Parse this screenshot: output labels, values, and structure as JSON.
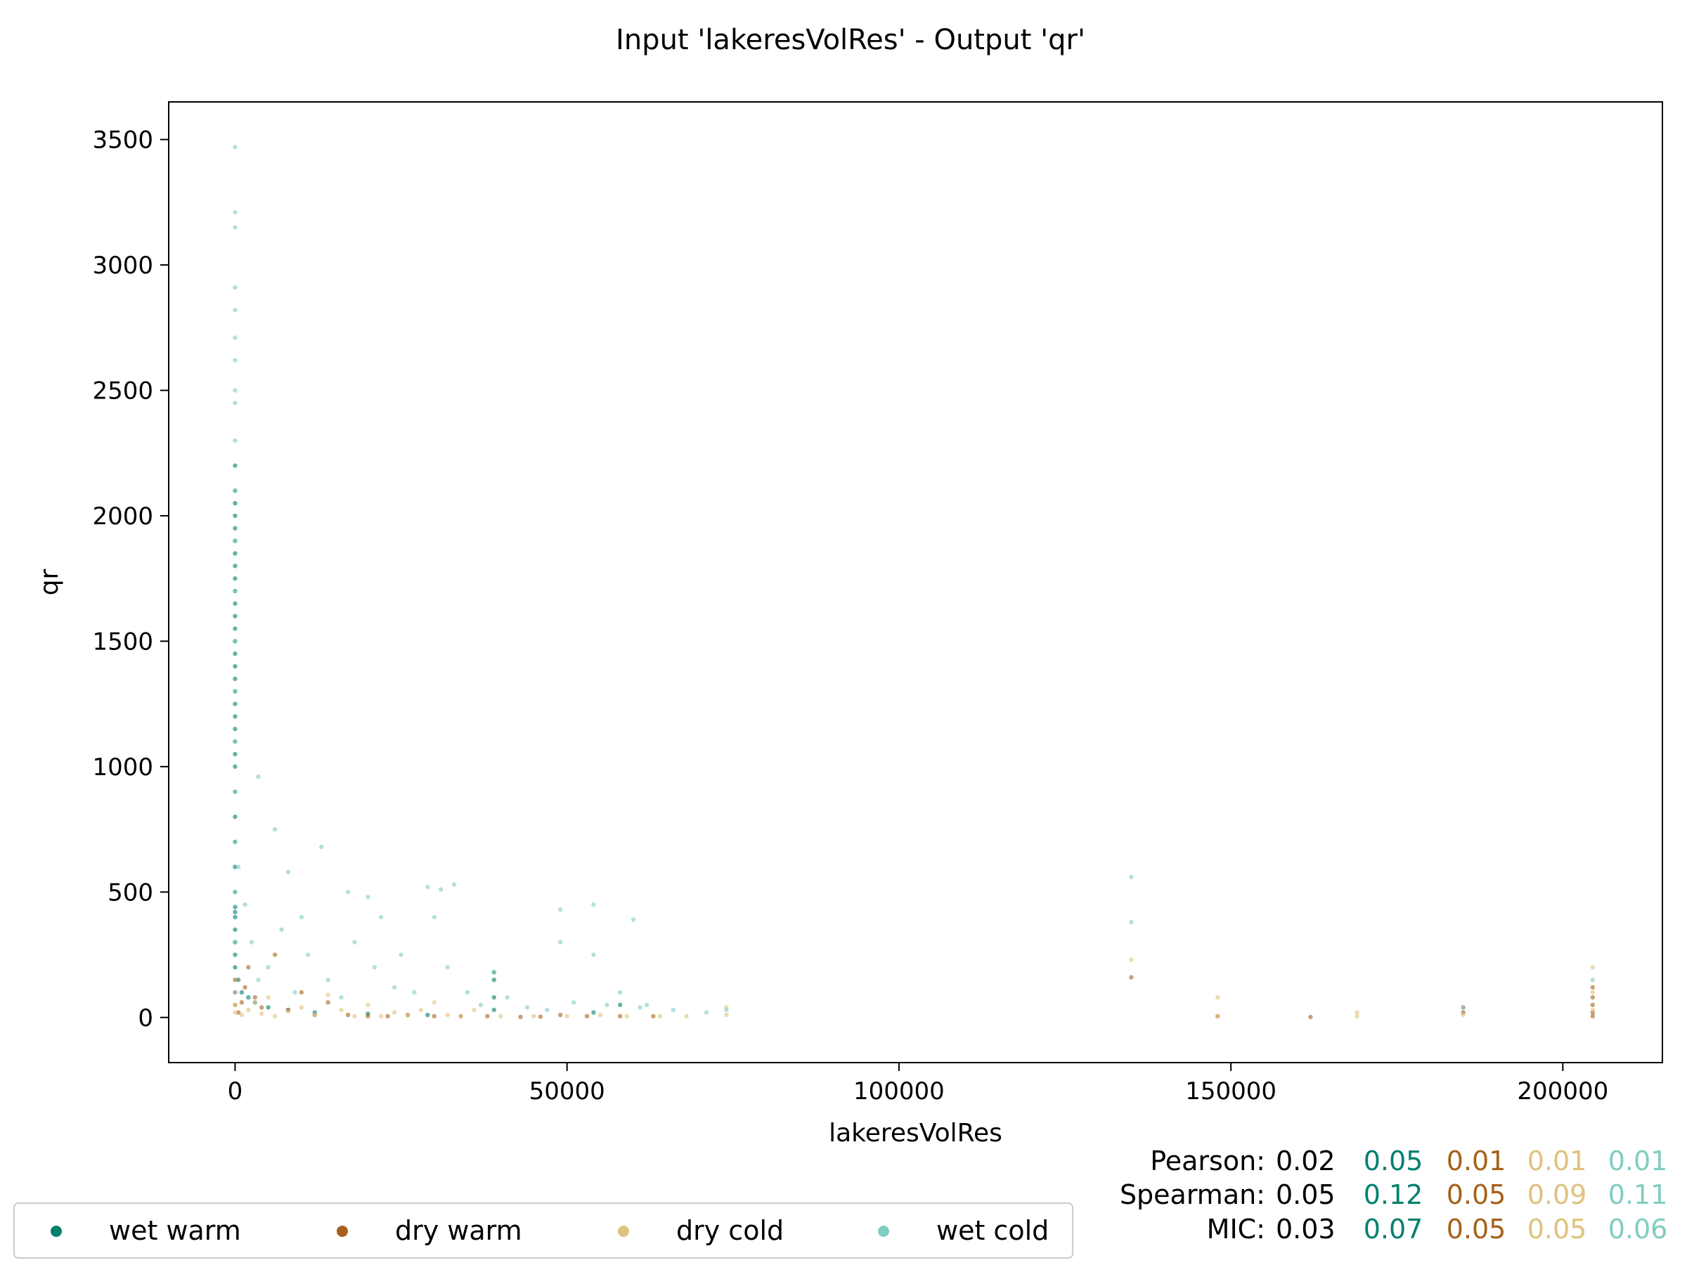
{
  "chart_data": {
    "type": "scatter",
    "title": "Input 'lakeresVolRes' - Output 'qr'",
    "xlabel": "lakeresVolRes",
    "ylabel": "qr",
    "xlim": [
      -10000,
      215000
    ],
    "ylim": [
      -180,
      3650
    ],
    "xticks": [
      0,
      50000,
      100000,
      150000,
      200000
    ],
    "yticks": [
      0,
      500,
      1000,
      1500,
      2000,
      2500,
      3000,
      3500
    ],
    "grid": false,
    "legend_position": "bottom-left, below plot",
    "series": [
      {
        "name": "wet warm",
        "color": "#00806e",
        "x": [
          0,
          0,
          0,
          0,
          0,
          0,
          0,
          0,
          0,
          0,
          0,
          0,
          0,
          0,
          0,
          0,
          0,
          0,
          0,
          0,
          0,
          0,
          0,
          0,
          0,
          0,
          0,
          0,
          0,
          0,
          0,
          0,
          0,
          0,
          0,
          0,
          500,
          1000,
          2000,
          3000,
          5000,
          8000,
          12000,
          20000,
          29000,
          39000,
          39000,
          39000,
          39000,
          54000,
          58000
        ],
        "y": [
          200,
          250,
          300,
          350,
          400,
          420,
          440,
          500,
          600,
          700,
          800,
          900,
          1000,
          1050,
          1100,
          1150,
          1200,
          1250,
          1300,
          1350,
          1400,
          1450,
          1500,
          1550,
          1600,
          1650,
          1700,
          1750,
          1800,
          1850,
          1900,
          1950,
          2000,
          2050,
          2100,
          2200,
          150,
          100,
          80,
          60,
          40,
          30,
          20,
          15,
          10,
          30,
          80,
          150,
          180,
          20,
          50
        ]
      },
      {
        "name": "dry warm",
        "color": "#a6611a",
        "x": [
          0,
          0,
          0,
          500,
          1000,
          1500,
          2000,
          3000,
          4000,
          6000,
          8000,
          10000,
          12000,
          14000,
          17000,
          20000,
          23000,
          26000,
          30000,
          34000,
          38000,
          43000,
          46000,
          49000,
          53000,
          58000,
          63000,
          148000,
          162000,
          185000,
          185000,
          204500,
          204500,
          204500,
          204500,
          204500,
          135000
        ],
        "y": [
          50,
          100,
          150,
          20,
          60,
          120,
          200,
          80,
          40,
          250,
          30,
          100,
          10,
          60,
          10,
          5,
          5,
          10,
          5,
          5,
          5,
          2,
          3,
          10,
          5,
          5,
          5,
          5,
          2,
          20,
          40,
          5,
          20,
          50,
          80,
          120,
          160
        ]
      },
      {
        "name": "dry cold",
        "color": "#dfc27d",
        "x": [
          0,
          0,
          1000,
          2000,
          3000,
          4000,
          5000,
          6000,
          8000,
          10000,
          12000,
          14000,
          16000,
          18000,
          20000,
          22000,
          24000,
          26000,
          28000,
          30000,
          32000,
          34000,
          36000,
          40000,
          45000,
          50000,
          55000,
          59000,
          64000,
          68000,
          74000,
          74000,
          148000,
          148000,
          169000,
          169000,
          185000,
          204500,
          204500,
          204500,
          135000
        ],
        "y": [
          20,
          50,
          10,
          30,
          60,
          15,
          80,
          5,
          25,
          40,
          10,
          90,
          30,
          5,
          50,
          5,
          20,
          8,
          30,
          60,
          10,
          5,
          30,
          5,
          5,
          5,
          10,
          5,
          5,
          5,
          10,
          40,
          5,
          80,
          5,
          20,
          10,
          30,
          100,
          200,
          230
        ]
      },
      {
        "name": "wet cold",
        "color": "#80cdc1",
        "x": [
          0,
          0,
          0,
          0,
          0,
          0,
          0,
          0,
          0,
          0,
          0,
          0,
          0,
          0,
          0,
          0,
          0,
          0,
          0,
          0,
          0,
          3500,
          6000,
          8000,
          10000,
          13000,
          17000,
          20000,
          22000,
          25000,
          29000,
          31000,
          33000,
          39000,
          49000,
          49000,
          54000,
          54000,
          58000,
          60000,
          62000,
          74000,
          135000,
          135000,
          185000,
          204500,
          500,
          1500,
          2500,
          3500,
          5000,
          7000,
          9000,
          11000,
          14000,
          16000,
          18000,
          21000,
          24000,
          27000,
          30000,
          32000,
          35000,
          37000,
          41000,
          44000,
          47000,
          51000,
          56000,
          61000,
          66000,
          71000
        ],
        "y": [
          100,
          300,
          500,
          700,
          900,
          1100,
          1300,
          1500,
          1700,
          1900,
          2100,
          2300,
          2450,
          2500,
          2620,
          2710,
          2820,
          2910,
          3150,
          3210,
          3470,
          960,
          750,
          580,
          400,
          680,
          500,
          480,
          400,
          250,
          520,
          510,
          530,
          180,
          430,
          300,
          450,
          250,
          100,
          390,
          50,
          30,
          560,
          380,
          40,
          150,
          600,
          450,
          300,
          150,
          200,
          350,
          100,
          250,
          150,
          80,
          300,
          200,
          120,
          100,
          400,
          200,
          100,
          50,
          80,
          40,
          30,
          60,
          50,
          40,
          30,
          20
        ]
      }
    ]
  },
  "legend": [
    {
      "label": "wet warm",
      "color": "#00806e"
    },
    {
      "label": "dry warm",
      "color": "#a6611a"
    },
    {
      "label": "dry cold",
      "color": "#dfc27d"
    },
    {
      "label": "wet cold",
      "color": "#80cdc1"
    }
  ],
  "stats": {
    "overall_color": "#000000",
    "series_colors": [
      "#00806e",
      "#a6611a",
      "#dfc27d",
      "#80cdc1"
    ],
    "rows": [
      {
        "label": "Pearson:",
        "overall": "0.02",
        "values": [
          "0.05",
          "0.01",
          "0.01",
          "0.01"
        ]
      },
      {
        "label": "Spearman:",
        "overall": "0.05",
        "values": [
          "0.12",
          "0.05",
          "0.09",
          "0.11"
        ]
      },
      {
        "label": "MIC:",
        "overall": "0.03",
        "values": [
          "0.07",
          "0.05",
          "0.05",
          "0.06"
        ]
      }
    ]
  }
}
